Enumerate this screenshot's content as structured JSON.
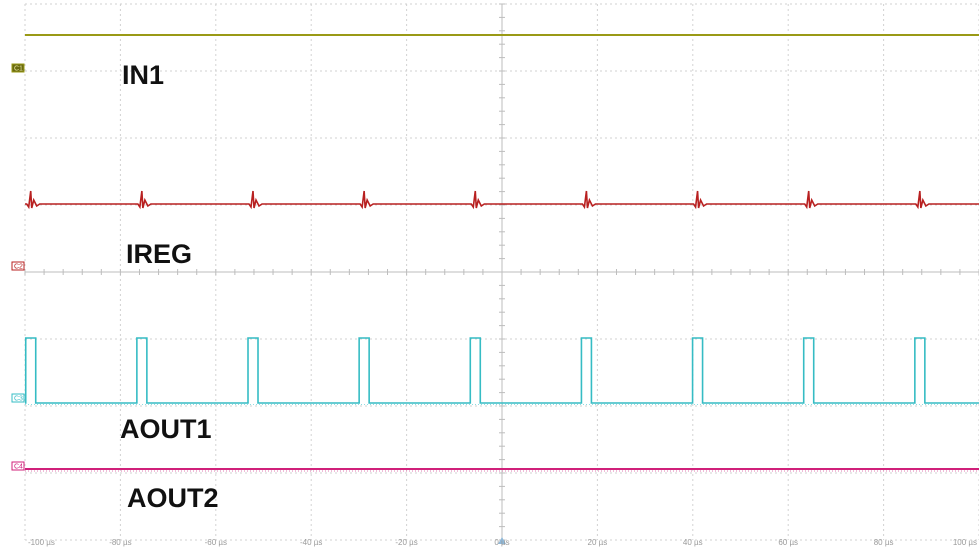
{
  "chart_data": {
    "type": "line",
    "x_unit": "µs",
    "xlim": [
      -100,
      100
    ],
    "x_ticks": [
      -100,
      -80,
      -60,
      -40,
      -20,
      0,
      20,
      40,
      60,
      80,
      100
    ],
    "x_tick_labels": [
      "-100 µs",
      "-80 µs",
      "-60 µs",
      "-40 µs",
      "-20 µs",
      "0 µs",
      "20 µs",
      "40 µs",
      "60 µs",
      "80 µs",
      "100 µs"
    ],
    "grid": true,
    "pulse_period_us": 23.3,
    "first_pulse_us": -98.8,
    "pulse_count": 9,
    "series": [
      {
        "name": "IN1",
        "color": "#9a9a16",
        "marker": "C1",
        "shape": "flat"
      },
      {
        "name": "IREG",
        "color": "#b82020",
        "marker": "C2",
        "shape": "spikes"
      },
      {
        "name": "AOUT1",
        "color": "#35bcc4",
        "marker": "C3",
        "shape": "pulses"
      },
      {
        "name": "AOUT2",
        "color": "#d0207a",
        "marker": "C4",
        "shape": "flat"
      }
    ]
  }
}
